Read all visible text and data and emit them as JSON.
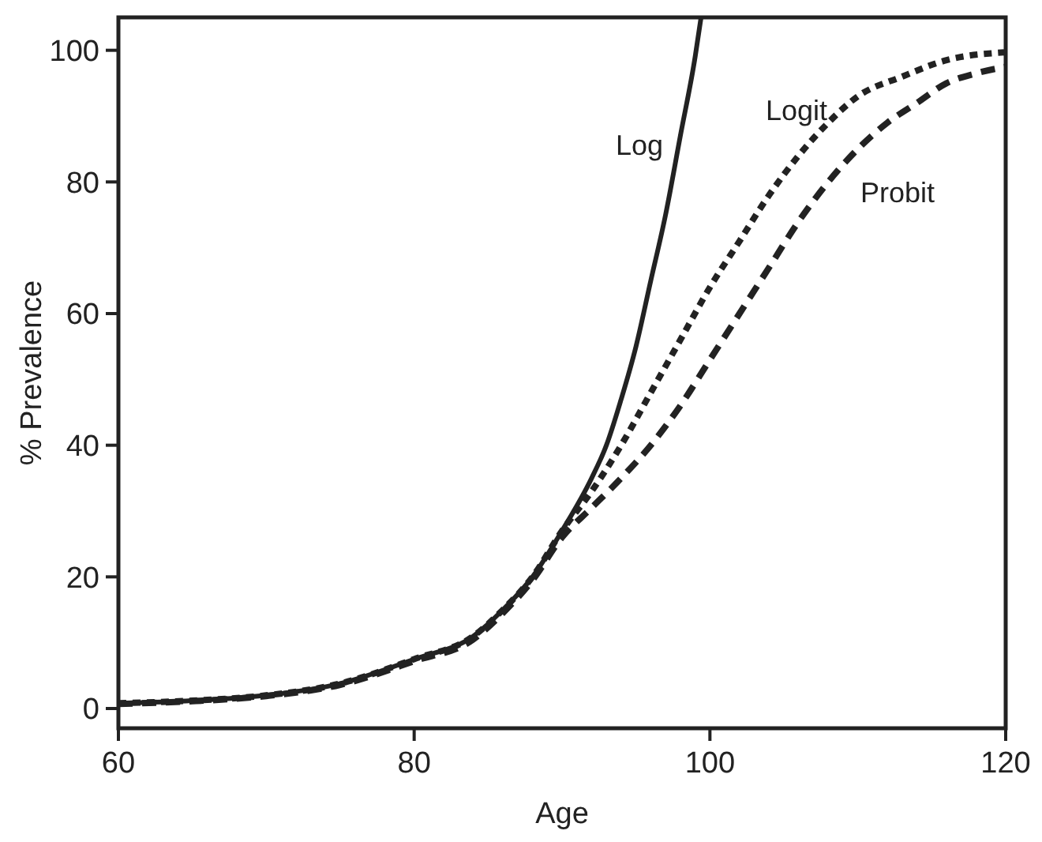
{
  "chart_data": {
    "type": "line",
    "xlabel": "Age",
    "ylabel": "% Prevalence",
    "xlim": [
      60,
      120
    ],
    "ylim": [
      -3,
      105
    ],
    "xticks": [
      60,
      80,
      100,
      120
    ],
    "yticks": [
      0,
      20,
      40,
      60,
      80,
      100
    ],
    "grid": false,
    "marker": "none",
    "series": [
      {
        "name": "Log",
        "color": "#222222",
        "line_style": "solid",
        "x": [
          60,
          65,
          70,
          75,
          80,
          84,
          86,
          88,
          90,
          92,
          93,
          94,
          95,
          96,
          97,
          98,
          99,
          99.4
        ],
        "values": [
          0.8,
          1.2,
          2.0,
          3.8,
          7.5,
          11,
          15,
          20,
          27,
          35,
          40,
          47,
          55,
          65,
          75,
          87,
          99,
          105
        ]
      },
      {
        "name": "Logit",
        "color": "#222222",
        "line_style": "dotted",
        "x": [
          60,
          65,
          70,
          75,
          80,
          84,
          86,
          88,
          90,
          92,
          94,
          96,
          98,
          100,
          102,
          104,
          106,
          108,
          110,
          113,
          116,
          120
        ],
        "values": [
          0.8,
          1.2,
          2.0,
          3.8,
          7.5,
          11,
          15,
          20,
          27,
          33,
          40,
          48,
          56,
          64,
          71,
          78,
          84,
          89,
          93,
          96,
          98.5,
          99.7
        ]
      },
      {
        "name": "Probit",
        "color": "#222222",
        "line_style": "dashed",
        "x": [
          60,
          65,
          70,
          75,
          80,
          84,
          86,
          88,
          90,
          92,
          94,
          96,
          98,
          100,
          102,
          104,
          106,
          108,
          110,
          112,
          114,
          116,
          118,
          120
        ],
        "values": [
          0.7,
          1.1,
          1.9,
          3.6,
          7.2,
          10.5,
          14.5,
          19.5,
          26,
          30.5,
          35,
          40,
          46,
          53,
          60,
          67,
          74,
          80,
          85,
          89,
          92,
          95,
          96.5,
          97.5
        ]
      }
    ]
  }
}
